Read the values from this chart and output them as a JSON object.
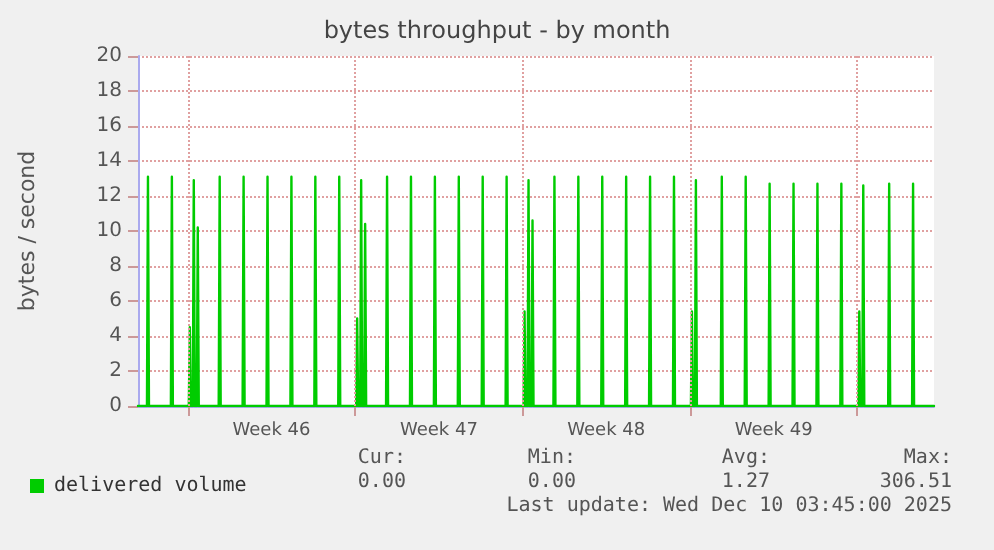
{
  "chart_data": {
    "type": "line",
    "title": "bytes throughput - by month",
    "ylabel": "bytes / second",
    "xlim": [
      "2025-11-07T22:00",
      "2025-12-11T05:00"
    ],
    "xticks": [
      {
        "value": "2025-11-10T00:00",
        "label": null
      },
      {
        "value": "2025-11-13T12:00",
        "label": "Week 46"
      },
      {
        "value": "2025-11-17T00:00",
        "label": null
      },
      {
        "value": "2025-11-20T12:00",
        "label": "Week 47"
      },
      {
        "value": "2025-11-24T00:00",
        "label": null
      },
      {
        "value": "2025-11-27T12:00",
        "label": "Week 48"
      },
      {
        "value": "2025-12-01T00:00",
        "label": null
      },
      {
        "value": "2025-12-04T12:00",
        "label": "Week 49"
      },
      {
        "value": "2025-12-08T00:00",
        "label": null
      }
    ],
    "ylim": [
      0,
      20
    ],
    "yticks": [
      0,
      2,
      4,
      6,
      8,
      10,
      12,
      14,
      16,
      18,
      20
    ],
    "grid": true,
    "legend": "bottom left",
    "marker": "none",
    "line_style": "solid",
    "series": [
      {
        "name": "delivered volume",
        "color": "#00cc00",
        "x": [
          "2025-11-07T22:00",
          "2025-11-08T07:00",
          "2025-11-08T08:00",
          "2025-11-08T09:00",
          "2025-11-09T07:00",
          "2025-11-09T08:00",
          "2025-11-09T09:00",
          "2025-11-10T01:00",
          "2025-11-10T02:00",
          "2025-11-10T03:00",
          "2025-11-10T05:00",
          "2025-11-10T06:00",
          "2025-11-10T07:00",
          "2025-11-10T09:00",
          "2025-11-10T10:00",
          "2025-11-10T11:00",
          "2025-11-11T07:00",
          "2025-11-11T08:00",
          "2025-11-11T09:00",
          "2025-11-12T07:00",
          "2025-11-12T08:00",
          "2025-11-12T09:00",
          "2025-11-13T07:00",
          "2025-11-13T08:00",
          "2025-11-13T09:00",
          "2025-11-14T07:00",
          "2025-11-14T08:00",
          "2025-11-14T09:00",
          "2025-11-15T07:00",
          "2025-11-15T08:00",
          "2025-11-15T09:00",
          "2025-11-16T07:00",
          "2025-11-16T08:00",
          "2025-11-16T09:00",
          "2025-11-17T01:00",
          "2025-11-17T02:00",
          "2025-11-17T03:00",
          "2025-11-17T05:00",
          "2025-11-17T06:00",
          "2025-11-17T07:00",
          "2025-11-17T09:00",
          "2025-11-17T10:00",
          "2025-11-17T11:00",
          "2025-11-18T07:00",
          "2025-11-18T08:00",
          "2025-11-18T09:00",
          "2025-11-19T07:00",
          "2025-11-19T08:00",
          "2025-11-19T09:00",
          "2025-11-20T07:00",
          "2025-11-20T08:00",
          "2025-11-20T09:00",
          "2025-11-21T07:00",
          "2025-11-21T08:00",
          "2025-11-21T09:00",
          "2025-11-22T07:00",
          "2025-11-22T08:00",
          "2025-11-22T09:00",
          "2025-11-23T07:00",
          "2025-11-23T08:00",
          "2025-11-23T09:00",
          "2025-11-24T01:00",
          "2025-11-24T02:00",
          "2025-11-24T03:00",
          "2025-11-24T05:00",
          "2025-11-24T06:00",
          "2025-11-24T07:00",
          "2025-11-24T09:00",
          "2025-11-24T10:00",
          "2025-11-24T11:00",
          "2025-11-25T07:00",
          "2025-11-25T08:00",
          "2025-11-25T09:00",
          "2025-11-26T07:00",
          "2025-11-26T08:00",
          "2025-11-26T09:00",
          "2025-11-27T07:00",
          "2025-11-27T08:00",
          "2025-11-27T09:00",
          "2025-11-28T07:00",
          "2025-11-28T08:00",
          "2025-11-28T09:00",
          "2025-11-29T07:00",
          "2025-11-29T08:00",
          "2025-11-29T09:00",
          "2025-11-30T07:00",
          "2025-11-30T08:00",
          "2025-11-30T09:00",
          "2025-12-01T01:00",
          "2025-12-01T02:00",
          "2025-12-01T03:00",
          "2025-12-01T05:00",
          "2025-12-01T06:00",
          "2025-12-01T07:00",
          "2025-12-02T07:00",
          "2025-12-02T08:00",
          "2025-12-02T09:00",
          "2025-12-03T07:00",
          "2025-12-03T08:00",
          "2025-12-03T09:00",
          "2025-12-04T07:00",
          "2025-12-04T08:00",
          "2025-12-04T09:00",
          "2025-12-05T07:00",
          "2025-12-05T08:00",
          "2025-12-05T09:00",
          "2025-12-06T07:00",
          "2025-12-06T08:00",
          "2025-12-06T09:00",
          "2025-12-07T07:00",
          "2025-12-07T08:00",
          "2025-12-07T09:00",
          "2025-12-08T01:00",
          "2025-12-08T02:00",
          "2025-12-08T03:00",
          "2025-12-08T05:00",
          "2025-12-08T06:00",
          "2025-12-08T07:00",
          "2025-12-09T07:00",
          "2025-12-09T08:00",
          "2025-12-09T09:00",
          "2025-12-10T07:00",
          "2025-12-10T08:00",
          "2025-12-10T09:00",
          "2025-12-11T05:00"
        ],
        "values": [
          0,
          0,
          13.1,
          0,
          0,
          13.1,
          0,
          0,
          4.5,
          0,
          0,
          12.9,
          0,
          0,
          10.2,
          0,
          0,
          13.1,
          0,
          0,
          13.1,
          0,
          0,
          13.1,
          0,
          0,
          13.1,
          0,
          0,
          13.1,
          0,
          0,
          13.1,
          0,
          0,
          5.0,
          0,
          0,
          12.9,
          0,
          0,
          10.4,
          0,
          0,
          13.1,
          0,
          0,
          13.1,
          0,
          0,
          13.1,
          0,
          0,
          13.1,
          0,
          0,
          13.1,
          0,
          0,
          13.1,
          0,
          0,
          5.4,
          0,
          0,
          12.9,
          0,
          0,
          10.6,
          0,
          0,
          13.1,
          0,
          0,
          13.1,
          0,
          0,
          13.1,
          0,
          0,
          13.1,
          0,
          0,
          13.1,
          0,
          0,
          13.1,
          0,
          0,
          5.4,
          0,
          0,
          12.9,
          0,
          0,
          13.1,
          0,
          0,
          13.1,
          0,
          0,
          12.7,
          0,
          0,
          12.7,
          0,
          0,
          12.7,
          0,
          0,
          12.7,
          0,
          0,
          5.4,
          0,
          0,
          12.6,
          0,
          0,
          12.7,
          0,
          0,
          12.7,
          0,
          0
        ]
      }
    ],
    "annotations": [
      "Cur:",
      "0.00",
      "Min:",
      "0.00",
      "Avg:",
      "1.27",
      "Max:",
      "306.51",
      "Last update: Wed Dec 10 03:45:00 2025"
    ]
  }
}
